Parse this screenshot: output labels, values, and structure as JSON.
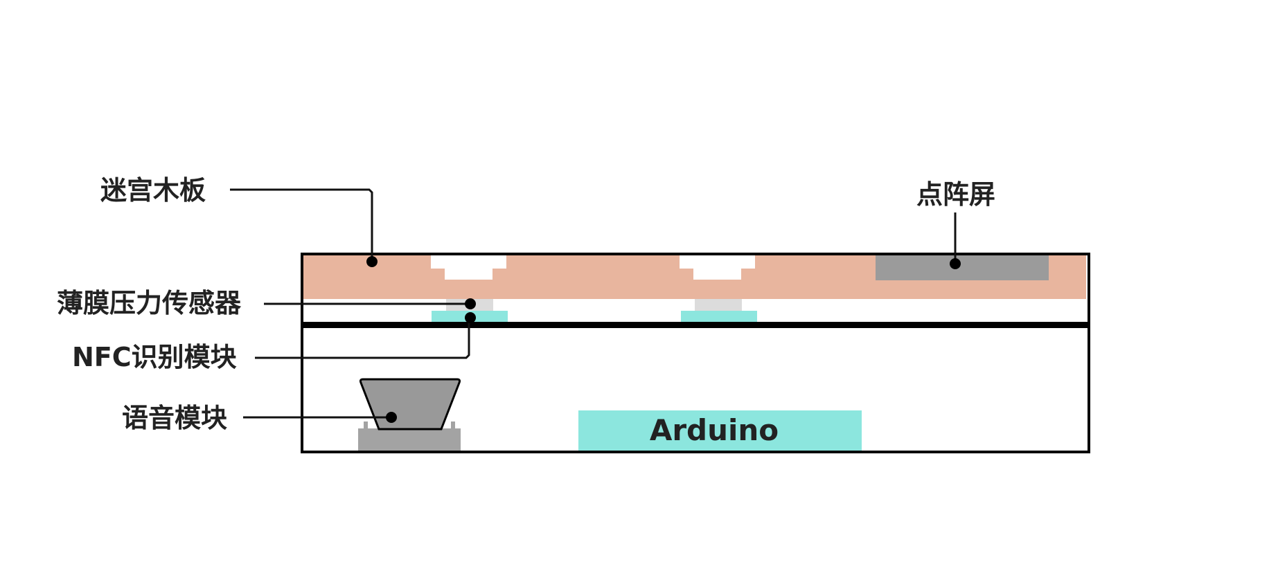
{
  "colors": {
    "wood": "#E8B59E",
    "nfc": "#8CE6DE",
    "sensor": "#DCDCDC",
    "display": "#9B9B9B",
    "speaker": "#999999",
    "speaker_base": "#A3A3A3",
    "outline": "#000000",
    "text": "#222222"
  },
  "labels": {
    "maze_board": "迷宫木板",
    "dot_matrix": "点阵屏",
    "pressure_sensor": "薄膜压力传感器",
    "nfc_module": "NFC识别模块",
    "voice_module": "语音模块",
    "arduino": "Arduino"
  }
}
